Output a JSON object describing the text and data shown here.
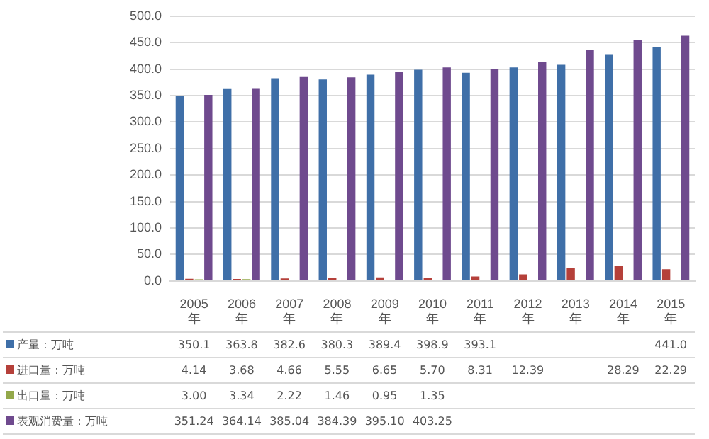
{
  "chart_data": {
    "type": "bar",
    "categories": [
      "2005年",
      "2006年",
      "2007年",
      "2008年",
      "2009年",
      "2010年",
      "2011年",
      "2012年",
      "2013年",
      "2014年",
      "2015年"
    ],
    "series": [
      {
        "name": "产量：万吨",
        "color": "#3f6fa8",
        "values": [
          350.1,
          363.8,
          382.6,
          380.3,
          389.4,
          398.9,
          393.1,
          403,
          408,
          428.2,
          441.0
        ],
        "value_labels": [
          "350.1",
          "363.8",
          "382.6",
          "380.3",
          "389.4",
          "398.9",
          "393.1",
          null,
          null,
          null,
          "441.0"
        ]
      },
      {
        "name": "进口量：万吨",
        "color": "#b5403a",
        "values": [
          4.14,
          3.68,
          4.66,
          5.55,
          6.65,
          5.7,
          8.31,
          12.39,
          24,
          28.29,
          22.29
        ],
        "value_labels": [
          "4.14",
          "3.68",
          "4.66",
          "5.55",
          "6.65",
          "5.70",
          "8.31",
          "12.39",
          null,
          "28.29",
          "22.29"
        ]
      },
      {
        "name": "出口量：万吨",
        "color": "#93a84a",
        "values": [
          3.0,
          3.34,
          2.22,
          1.46,
          0.95,
          1.35,
          null,
          null,
          null,
          null,
          null
        ],
        "value_labels": [
          "3.00",
          "3.34",
          "2.22",
          "1.46",
          "0.95",
          "1.35",
          null,
          null,
          null,
          null,
          null
        ]
      },
      {
        "name": "表观消费量：万吨",
        "color": "#6f4a8e",
        "values": [
          351.24,
          364.14,
          385.04,
          384.39,
          395.1,
          403.25,
          400,
          413,
          436,
          455,
          463
        ],
        "value_labels": [
          "351.24",
          "364.14",
          "385.04",
          "384.39",
          "395.10",
          "403.25",
          null,
          null,
          null,
          null,
          null
        ]
      }
    ],
    "ylim": [
      0,
      500
    ],
    "yticks": [
      {
        "value": 0,
        "label": "0.0"
      },
      {
        "value": 50,
        "label": "50.0"
      },
      {
        "value": 100,
        "label": "100.0"
      },
      {
        "value": 150,
        "label": "150.0"
      },
      {
        "value": 200,
        "label": "200.0"
      },
      {
        "value": 250,
        "label": "250.0"
      },
      {
        "value": 300,
        "label": "300.0"
      },
      {
        "value": 350,
        "label": "350.0"
      },
      {
        "value": 400,
        "label": "400.0"
      },
      {
        "value": 450,
        "label": "450.0"
      },
      {
        "value": 500,
        "label": "500.0"
      }
    ],
    "grid": "y",
    "legend": "bottom"
  }
}
